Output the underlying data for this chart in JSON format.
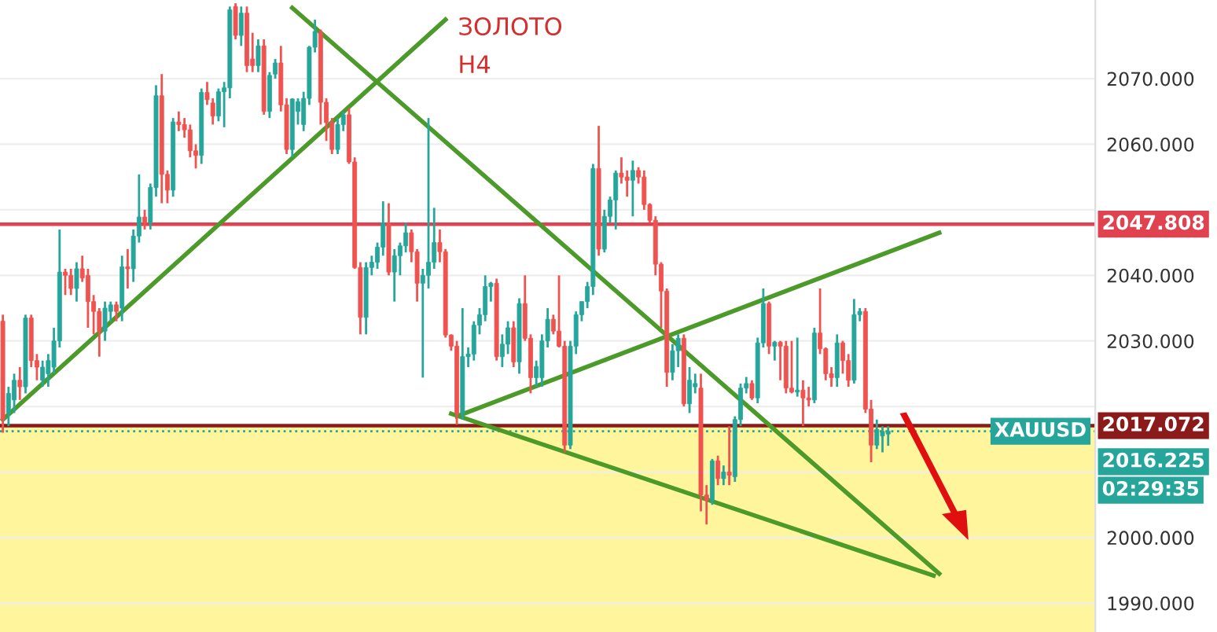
{
  "chart_data": {
    "type": "candlestick",
    "categories": [
      null,
      null,
      null,
      null,
      null,
      null,
      null,
      null,
      null,
      null,
      null,
      null,
      null,
      null,
      null,
      null,
      null,
      null,
      null,
      null,
      null,
      null,
      null,
      null,
      null,
      null,
      null,
      null,
      null,
      null,
      null,
      null,
      null,
      null,
      null,
      null,
      null,
      null,
      null,
      null,
      null,
      null,
      null,
      null,
      null,
      null,
      null,
      null,
      null,
      null,
      null,
      null,
      null,
      null,
      null,
      null,
      null,
      null,
      null,
      null,
      null,
      null,
      null,
      null,
      null,
      null,
      null,
      null,
      null,
      null,
      null,
      null,
      null,
      null,
      null,
      null,
      null,
      null,
      null,
      null,
      null,
      null,
      null,
      null,
      null,
      null,
      null,
      null,
      null,
      null,
      null,
      null,
      null,
      null,
      null,
      null,
      null,
      null,
      null,
      null,
      null,
      null,
      null,
      null,
      null,
      null,
      null,
      null,
      null,
      null,
      null,
      null,
      null,
      null,
      null,
      null,
      null,
      null,
      null,
      null,
      null,
      null,
      null,
      null,
      null,
      null,
      null,
      null,
      null,
      null,
      null,
      null,
      null,
      null,
      null,
      null,
      null,
      null,
      null,
      null,
      null,
      null,
      null,
      null,
      null,
      null,
      null,
      null,
      null,
      null,
      null,
      null,
      null,
      null,
      null,
      null,
      null,
      null,
      null,
      null,
      null,
      null,
      null,
      null,
      null,
      null,
      null,
      null,
      null,
      null,
      null,
      null,
      null,
      null,
      null,
      null,
      null,
      null,
      null,
      null,
      null,
      null,
      null,
      null,
      null,
      null,
      null,
      null,
      null,
      null,
      null,
      null,
      null
    ],
    "ohlc": [
      [
        2033,
        2034,
        2016,
        2018
      ],
      [
        2019,
        2023,
        2017,
        2022
      ],
      [
        2021,
        2025,
        2019,
        2024
      ],
      [
        2024,
        2026,
        2021,
        2023
      ],
      [
        2023,
        2034,
        2022,
        2033.5
      ],
      [
        2033.5,
        2034,
        2026,
        2027
      ],
      [
        2027,
        2028,
        2024,
        2026
      ],
      [
        2024,
        2027,
        2023,
        2026
      ],
      [
        2025,
        2028,
        2023,
        2027
      ],
      [
        2026,
        2032,
        2025,
        2030
      ],
      [
        2030,
        2047,
        2029,
        2040.5
      ],
      [
        2040.5,
        2041,
        2037,
        2040
      ],
      [
        2040,
        2041,
        2037,
        2038
      ],
      [
        2038,
        2042,
        2036,
        2041
      ],
      [
        2041,
        2043,
        2039,
        2039.6
      ],
      [
        2040,
        2041,
        2032,
        2036
      ],
      [
        2036,
        2037,
        2031,
        2034.5
      ],
      [
        2034.5,
        2035,
        2027.6,
        2031.5
      ],
      [
        2031.5,
        2036,
        2030,
        2035
      ],
      [
        2034.5,
        2036,
        2033,
        2035.5
      ],
      [
        2035.5,
        2036,
        2033,
        2034.5
      ],
      [
        2035,
        2043,
        2033,
        2041.3
      ],
      [
        2041.3,
        2044,
        2038,
        2041
      ],
      [
        2041,
        2047,
        2039,
        2046
      ],
      [
        2046,
        2055.4,
        2045,
        2048.9
      ],
      [
        2048.9,
        2050,
        2047,
        2048
      ],
      [
        2048,
        2054,
        2047,
        2053.4
      ],
      [
        2053.4,
        2069,
        2052,
        2067.4
      ],
      [
        2067.4,
        2070.7,
        2051,
        2055.4
      ],
      [
        2055.4,
        2056,
        2051,
        2053
      ],
      [
        2053,
        2064,
        2052,
        2063.4
      ],
      [
        2063.4,
        2065,
        2062,
        2063
      ],
      [
        2063,
        2064,
        2061,
        2062.2
      ],
      [
        2062.2,
        2063,
        2058,
        2059
      ],
      [
        2059,
        2060,
        2056.3,
        2058.3
      ],
      [
        2058.3,
        2068.5,
        2057,
        2067.9
      ],
      [
        2067.9,
        2069.5,
        2066,
        2066.8
      ],
      [
        2066.3,
        2067,
        2063,
        2064.3
      ],
      [
        2064.3,
        2068.5,
        2063.5,
        2068
      ],
      [
        2068,
        2069.5,
        2062.6,
        2068.6
      ],
      [
        2068.6,
        2081,
        2067,
        2080.5
      ],
      [
        2081,
        2081.5,
        2076,
        2076.6
      ],
      [
        2076.6,
        2081,
        2075,
        2080
      ],
      [
        2080,
        2081,
        2071,
        2072
      ],
      [
        2073,
        2077,
        2071,
        2072
      ],
      [
        2072,
        2076,
        2071,
        2075
      ],
      [
        2075,
        2076,
        2064.5,
        2065
      ],
      [
        2065,
        2071,
        2064,
        2070.5
      ],
      [
        2070.7,
        2073,
        2070,
        2072.4
      ],
      [
        2072.4,
        2075,
        2065,
        2066
      ],
      [
        2066,
        2067,
        2058.5,
        2059.2
      ],
      [
        2059.2,
        2067,
        2058,
        2066.9
      ],
      [
        2065,
        2067,
        2063,
        2066.5
      ],
      [
        2063,
        2068,
        2062,
        2067
      ],
      [
        2067,
        2075,
        2066,
        2074.8
      ],
      [
        2074.8,
        2079,
        2074,
        2077.2
      ],
      [
        2077,
        2077.5,
        2063,
        2066.4
      ],
      [
        2066.4,
        2067,
        2060.5,
        2063.3
      ],
      [
        2063.3,
        2064,
        2058.5,
        2059.2
      ],
      [
        2059.2,
        2064,
        2058.5,
        2063
      ],
      [
        2063,
        2065,
        2062,
        2064.5
      ],
      [
        2064.5,
        2065.5,
        2057,
        2057.3
      ],
      [
        2057.3,
        2058,
        2041,
        2041.2
      ],
      [
        2041.2,
        2042,
        2031,
        2033.6
      ],
      [
        2033.6,
        2042,
        2031,
        2041.2
      ],
      [
        2041.2,
        2043,
        2040,
        2042
      ],
      [
        2042,
        2045,
        2041,
        2044.3
      ],
      [
        2044.3,
        2051.3,
        2043,
        2048
      ],
      [
        2048,
        2051,
        2040,
        2040.5
      ],
      [
        2040.5,
        2044,
        2036,
        2043
      ],
      [
        2043,
        2045,
        2040,
        2044.5
      ],
      [
        2044.5,
        2048,
        2043.5,
        2046.5
      ],
      [
        2046.5,
        2047,
        2042,
        2043.6
      ],
      [
        2043.6,
        2044,
        2036,
        2038.8
      ],
      [
        2038.8,
        2041,
        2024.4,
        2040
      ],
      [
        2040,
        2064,
        2038,
        2042
      ],
      [
        2042,
        2050.3,
        2041,
        2045
      ],
      [
        2045,
        2047,
        2042,
        2043.6
      ],
      [
        2043.6,
        2044,
        2030.5,
        2030.9
      ],
      [
        2030.9,
        2031,
        2028.5,
        2029.2
      ],
      [
        2029.2,
        2030,
        2017.2,
        2018.9
      ],
      [
        2018.9,
        2035,
        2018,
        2027.6
      ],
      [
        2027.6,
        2029,
        2026,
        2028
      ],
      [
        2028,
        2033,
        2027,
        2032.4
      ],
      [
        2032.4,
        2035,
        2031,
        2034
      ],
      [
        2034,
        2040,
        2033,
        2038.3
      ],
      [
        2038.3,
        2039,
        2036,
        2038.8
      ],
      [
        2038.8,
        2039.5,
        2027,
        2027.6
      ],
      [
        2027.6,
        2031,
        2026,
        2029.5
      ],
      [
        2029.5,
        2033,
        2028,
        2032
      ],
      [
        2032,
        2033,
        2026,
        2026.8
      ],
      [
        2026.8,
        2036.5,
        2025,
        2035.7
      ],
      [
        2035.7,
        2040,
        2030,
        2030.4
      ],
      [
        2030.4,
        2031,
        2022,
        2024.4
      ],
      [
        2024.4,
        2027,
        2023,
        2026.1
      ],
      [
        2024.4,
        2031,
        2023,
        2030
      ],
      [
        2030,
        2035,
        2029,
        2033.3
      ],
      [
        2033.3,
        2034,
        2031,
        2031.5
      ],
      [
        2031.5,
        2040,
        2029,
        2029.2
      ],
      [
        2029.2,
        2030,
        2013,
        2014.1
      ],
      [
        2014.1,
        2030,
        2013.5,
        2029.2
      ],
      [
        2029.2,
        2034.5,
        2028,
        2034
      ],
      [
        2034,
        2036,
        2033,
        2036
      ],
      [
        2036,
        2039,
        2035,
        2038.3
      ],
      [
        2038.3,
        2057,
        2037,
        2056.3
      ],
      [
        2056.3,
        2062.8,
        2043,
        2044
      ],
      [
        2044,
        2050,
        2043.5,
        2049
      ],
      [
        2049,
        2052,
        2048,
        2051.5
      ],
      [
        2051.5,
        2056,
        2047,
        2055.6
      ],
      [
        2055.6,
        2058,
        2054,
        2055
      ],
      [
        2055,
        2056,
        2052,
        2054.5
      ],
      [
        2054.5,
        2057.5,
        2049,
        2056
      ],
      [
        2056,
        2056.5,
        2054,
        2055
      ],
      [
        2055,
        2056,
        2050,
        2050.8
      ],
      [
        2050.8,
        2051,
        2048,
        2048.4
      ],
      [
        2048.4,
        2049,
        2040,
        2041.7
      ],
      [
        2041.7,
        2042,
        2032,
        2037.6
      ],
      [
        2037.6,
        2038,
        2023,
        2025.2
      ],
      [
        2025.2,
        2029.5,
        2024,
        2028.5
      ],
      [
        2028.5,
        2031,
        2026,
        2030.4
      ],
      [
        2030.4,
        2031,
        2020,
        2020.4
      ],
      [
        2020.4,
        2026,
        2019,
        2024
      ],
      [
        2023,
        2025,
        2022,
        2023.5
      ],
      [
        2022.8,
        2025,
        2004,
        2006.5
      ],
      [
        2006.5,
        2008,
        2002,
        2005.7
      ],
      [
        2005.7,
        2012,
        2005,
        2011.7
      ],
      [
        2011.7,
        2012.5,
        2008,
        2009
      ],
      [
        2009,
        2011,
        2008,
        2010
      ],
      [
        2010,
        2017,
        2008,
        2009.5
      ],
      [
        2009.3,
        2018.5,
        2008.5,
        2018
      ],
      [
        2018,
        2023.5,
        2017,
        2022.8
      ],
      [
        2022.8,
        2024.5,
        2022,
        2023.5
      ],
      [
        2023.5,
        2024,
        2021,
        2021.3
      ],
      [
        2021.3,
        2030.5,
        2020.5,
        2029.7
      ],
      [
        2029.7,
        2038,
        2029,
        2035.7
      ],
      [
        2035.7,
        2036,
        2028,
        2029.2
      ],
      [
        2029.2,
        2030,
        2027,
        2029.8
      ],
      [
        2029.8,
        2030,
        2024,
        2029.2
      ],
      [
        2029.2,
        2030,
        2022,
        2022.8
      ],
      [
        2022.8,
        2030,
        2022,
        2022.2
      ],
      [
        2022.2,
        2030.5,
        2021.5,
        2022.5
      ],
      [
        2022.5,
        2024,
        2017,
        2021.3
      ],
      [
        2021.3,
        2023,
        2020,
        2021
      ],
      [
        2021,
        2032,
        2020.5,
        2031.2
      ],
      [
        2031.2,
        2038,
        2028,
        2028.8
      ],
      [
        2028.8,
        2029,
        2024,
        2025
      ],
      [
        2025,
        2026,
        2023,
        2024.4
      ],
      [
        2024.4,
        2031,
        2023,
        2029.7
      ],
      [
        2029.7,
        2030,
        2025,
        2027
      ],
      [
        2027,
        2028,
        2023,
        2024
      ],
      [
        2024,
        2036.4,
        2023.5,
        2034
      ],
      [
        2034,
        2035,
        2033,
        2034.5
      ],
      [
        2034.5,
        2035,
        2019,
        2019.6
      ],
      [
        2019.6,
        2021,
        2011.5,
        2014.1
      ],
      [
        2014.1,
        2018,
        2013.5,
        2016.5
      ],
      [
        2015.5,
        2017,
        2013,
        2016.2
      ],
      [
        2015.8,
        2017,
        2014,
        2016.225
      ],
      null,
      null,
      null,
      null,
      null,
      null,
      null,
      null,
      null,
      null,
      null,
      null,
      null,
      null,
      null,
      null,
      null,
      null,
      null,
      null,
      null,
      null,
      null,
      null,
      null,
      null,
      null,
      null,
      null,
      null,
      null,
      null,
      null,
      null,
      null,
      null
    ],
    "colors": [
      "#ef5350",
      "#26a69a",
      "#26a69a",
      "#ef5350",
      "#26a69a",
      "#ef5350",
      "#ef5350",
      "#26a69a",
      "#26a69a",
      "#26a69a",
      "#26a69a",
      "#ef5350",
      "#ef5350",
      "#26a69a",
      "#ef5350",
      "#ef5350",
      "#ef5350",
      "#ef5350",
      "#26a69a",
      "#26a69a",
      "#ef5350",
      "#26a69a",
      "#ef5350",
      "#26a69a",
      "#26a69a",
      "#ef5350",
      "#26a69a",
      "#26a69a",
      "#ef5350",
      "#ef5350",
      "#26a69a",
      "#ef5350",
      "#ef5350",
      "#ef5350",
      "#ef5350",
      "#26a69a",
      "#ef5350",
      "#ef5350",
      "#26a69a",
      "#26a69a",
      "#26a69a",
      "#ef5350",
      "#26a69a",
      "#ef5350",
      "#ef5350",
      "#26a69a",
      "#ef5350",
      "#26a69a",
      "#26a69a",
      "#ef5350",
      "#ef5350",
      "#26a69a",
      "#26a69a",
      "#26a69a",
      "#26a69a",
      "#26a69a",
      "#ef5350",
      "#ef5350",
      "#ef5350",
      "#26a69a",
      "#26a69a",
      "#ef5350",
      "#ef5350",
      "#ef5350",
      "#26a69a",
      "#26a69a",
      "#26a69a",
      "#26a69a",
      "#ef5350",
      "#26a69a",
      "#26a69a",
      "#26a69a",
      "#ef5350",
      "#ef5350",
      "#26a69a",
      "#26a69a",
      "#26a69a",
      "#ef5350",
      "#ef5350",
      "#ef5350",
      "#ef5350",
      "#26a69a",
      "#26a69a",
      "#26a69a",
      "#26a69a",
      "#26a69a",
      "#26a69a",
      "#ef5350",
      "#26a69a",
      "#26a69a",
      "#ef5350",
      "#26a69a",
      "#ef5350",
      "#ef5350",
      "#26a69a",
      "#26a69a",
      "#26a69a",
      "#ef5350",
      "#ef5350",
      "#ef5350",
      "#26a69a",
      "#26a69a",
      "#26a69a",
      "#26a69a",
      "#26a69a",
      "#ef5350",
      "#26a69a",
      "#26a69a",
      "#26a69a",
      "#ef5350",
      "#ef5350",
      "#26a69a",
      "#ef5350",
      "#ef5350",
      "#ef5350",
      "#ef5350",
      "#ef5350",
      "#ef5350",
      "#26a69a",
      "#26a69a",
      "#ef5350",
      "#26a69a",
      "#26a69a",
      "#ef5350",
      "#ef5350",
      "#26a69a",
      "#ef5350",
      "#26a69a",
      "#ef5350",
      "#26a69a",
      "#26a69a",
      "#26a69a",
      "#ef5350",
      "#26a69a",
      "#26a69a",
      "#ef5350",
      "#26a69a",
      "#ef5350",
      "#ef5350",
      "#ef5350",
      "#26a69a",
      "#ef5350",
      "#ef5350",
      "#26a69a",
      "#ef5350",
      "#ef5350",
      "#ef5350",
      "#26a69a",
      "#ef5350",
      "#ef5350",
      "#26a69a",
      "#26a69a",
      "#ef5350",
      "#ef5350",
      "#26a69a",
      "#26a69a",
      "#26a69a",
      null,
      null,
      null,
      null,
      null,
      null,
      null,
      null,
      null,
      null,
      null,
      null,
      null,
      null,
      null,
      null,
      null,
      null,
      null,
      null,
      null,
      null,
      null,
      null,
      null,
      null,
      null,
      null,
      null,
      null,
      null,
      null,
      null,
      null,
      null,
      null
    ],
    "series": [
      {
        "type": "line",
        "color": "#4c9a2a",
        "values": [
          2018,
          null,
          null,
          null,
          null,
          null,
          null,
          null,
          null,
          null,
          null,
          null,
          null,
          null,
          null,
          null,
          null,
          null,
          null,
          null,
          null,
          null,
          null,
          null,
          null,
          null,
          null,
          null,
          null,
          null,
          null,
          null,
          null,
          null,
          null,
          null,
          null,
          null,
          null,
          null,
          null,
          null,
          null,
          null,
          null,
          null,
          null,
          null,
          null,
          null,
          null,
          null,
          null,
          null,
          null,
          null,
          null,
          null,
          null,
          null,
          null,
          null,
          null,
          null,
          null,
          null,
          null,
          null,
          null,
          null,
          null,
          null,
          null,
          null,
          null,
          null,
          null,
          null,
          2079,
          null,
          null,
          null,
          null,
          null,
          null,
          null,
          null,
          null,
          null,
          null,
          null,
          null,
          null,
          null,
          null,
          null,
          null,
          null,
          null,
          null,
          null,
          null,
          null,
          null,
          null,
          null,
          null,
          null,
          null,
          null,
          null,
          null,
          null,
          null,
          null,
          null,
          null,
          null,
          null,
          null,
          null,
          null,
          null,
          null,
          null,
          null,
          null,
          null,
          null,
          null,
          null,
          null,
          null,
          null,
          null,
          null,
          null,
          null,
          null,
          null,
          null,
          null,
          null,
          null,
          null,
          null,
          null,
          null,
          null,
          null,
          null,
          null,
          null,
          null,
          null,
          null,
          null,
          null,
          null,
          null,
          null,
          null,
          null,
          null,
          null,
          null,
          null,
          null,
          null,
          null,
          null,
          null,
          null,
          null,
          null,
          null,
          null,
          null,
          null,
          null,
          null,
          null,
          null,
          null,
          null,
          null,
          null,
          null,
          null,
          null,
          null,
          null,
          null
        ]
      },
      {
        "type": "line",
        "color": "#4c9a2a",
        "values": [
          null,
          null,
          null,
          null,
          null,
          null,
          null,
          null,
          null,
          null,
          null,
          null,
          null,
          null,
          null,
          null,
          null,
          null,
          null,
          null,
          null,
          null,
          null,
          null,
          null,
          null,
          null,
          null,
          null,
          null,
          null,
          null,
          null,
          null,
          null,
          null,
          null,
          null,
          null,
          null,
          null,
          null,
          null,
          null,
          null,
          null,
          null,
          null,
          null,
          null,
          null,
          2080.8,
          null,
          null,
          null,
          null,
          null,
          null,
          null,
          null,
          null,
          null,
          null,
          null,
          null,
          null,
          null,
          null,
          null,
          null,
          null,
          null,
          null,
          null,
          null,
          null,
          null,
          null,
          null,
          null,
          null,
          null,
          null,
          null,
          null,
          null,
          null,
          null,
          null,
          null,
          null,
          null,
          null,
          null,
          null,
          null,
          null,
          null,
          null,
          null,
          null,
          null,
          null,
          null,
          null,
          null,
          null,
          null,
          null,
          null,
          null,
          null,
          null,
          null,
          null,
          null,
          null,
          null,
          null,
          null,
          null,
          null,
          null,
          null,
          null,
          null,
          null,
          null,
          null,
          null,
          null,
          null,
          null,
          null,
          null,
          null,
          null,
          null,
          null,
          null,
          null,
          null,
          null,
          null,
          null,
          null,
          null,
          null,
          null,
          null,
          null,
          null,
          null,
          null,
          null,
          null,
          null,
          null,
          null,
          null,
          null,
          null,
          null,
          null,
          null,
          1994.5,
          null,
          null,
          null,
          null,
          null,
          null,
          null,
          null,
          null,
          null,
          null,
          null,
          null,
          null,
          null,
          null,
          null,
          null,
          null,
          null,
          null,
          null,
          null,
          null,
          null,
          null,
          null
        ]
      },
      {
        "type": "line",
        "color": "#4c9a2a",
        "values": [
          null,
          null,
          null,
          null,
          null,
          null,
          null,
          null,
          null,
          null,
          null,
          null,
          null,
          null,
          null,
          null,
          null,
          null,
          null,
          null,
          null,
          null,
          null,
          null,
          null,
          null,
          null,
          null,
          null,
          null,
          null,
          null,
          null,
          null,
          null,
          null,
          null,
          null,
          null,
          null,
          null,
          null,
          null,
          null,
          null,
          null,
          null,
          null,
          null,
          null,
          null,
          null,
          null,
          null,
          null,
          null,
          null,
          null,
          null,
          null,
          null,
          null,
          null,
          null,
          null,
          null,
          null,
          null,
          null,
          null,
          null,
          null,
          null,
          null,
          null,
          null,
          null,
          null,
          null,
          2018.9,
          null,
          null,
          null,
          null,
          null,
          null,
          null,
          null,
          null,
          null,
          null,
          null,
          null,
          null,
          null,
          null,
          null,
          null,
          null,
          null,
          null,
          null,
          null,
          null,
          null,
          null,
          null,
          null,
          null,
          null,
          null,
          null,
          null,
          null,
          null,
          null,
          null,
          null,
          null,
          null,
          null,
          null,
          null,
          null,
          null,
          null,
          null,
          null,
          null,
          null,
          null,
          null,
          null,
          null,
          null,
          null,
          null,
          null,
          null,
          null,
          null,
          null,
          null,
          null,
          null,
          null,
          null,
          null,
          null,
          null,
          null,
          null,
          null,
          null,
          null,
          null,
          null,
          null,
          null,
          null,
          null,
          null,
          null,
          null,
          1994.2,
          null,
          null,
          null,
          null,
          null,
          null,
          null,
          null,
          null,
          null,
          null,
          null,
          null,
          null,
          null,
          null,
          null,
          null,
          null,
          null,
          null,
          null,
          null,
          null,
          null,
          null,
          null,
          null
        ]
      },
      {
        "type": "line",
        "color": "#4c9a2a",
        "values": [
          null,
          null,
          null,
          null,
          null,
          null,
          null,
          null,
          null,
          null,
          null,
          null,
          null,
          null,
          null,
          null,
          null,
          null,
          null,
          null,
          null,
          null,
          null,
          null,
          null,
          null,
          null,
          null,
          null,
          null,
          null,
          null,
          null,
          null,
          null,
          null,
          null,
          null,
          null,
          null,
          null,
          null,
          null,
          null,
          null,
          null,
          null,
          null,
          null,
          null,
          null,
          null,
          null,
          null,
          null,
          null,
          null,
          null,
          null,
          null,
          null,
          null,
          null,
          null,
          null,
          null,
          null,
          null,
          null,
          null,
          null,
          null,
          null,
          null,
          null,
          null,
          null,
          null,
          null,
          null,
          2018.5,
          null,
          null,
          null,
          null,
          null,
          null,
          null,
          null,
          null,
          null,
          null,
          null,
          null,
          null,
          null,
          null,
          null,
          null,
          null,
          null,
          null,
          null,
          null,
          null,
          null,
          null,
          null,
          null,
          null,
          null,
          null,
          null,
          null,
          null,
          null,
          null,
          null,
          null,
          null,
          null,
          null,
          null,
          null,
          null,
          null,
          null,
          null,
          null,
          null,
          null,
          null,
          null,
          null,
          null,
          null,
          null,
          null,
          null,
          null,
          null,
          null,
          null,
          null,
          null,
          null,
          null,
          null,
          null,
          null,
          null,
          null,
          null,
          null,
          null,
          null,
          null,
          null,
          null,
          null,
          null,
          null,
          null,
          null,
          null,
          2046.5,
          null,
          null,
          null,
          null,
          null,
          null,
          null,
          null,
          null,
          null,
          null,
          null,
          null,
          null,
          null,
          null,
          null,
          null,
          null,
          null,
          null,
          null,
          null,
          null,
          null,
          null,
          null
        ]
      }
    ],
    "ylim": [
      1985.6,
      2082
    ],
    "yticks": [
      {
        "value": 1990,
        "label": "1990.000"
      },
      {
        "value": 2000,
        "label": "2000.000"
      },
      {
        "value": 2010,
        "label": null
      },
      {
        "value": 2020,
        "label": null
      },
      {
        "value": 2030,
        "label": "2030.000"
      },
      {
        "value": 2040,
        "label": "2040.000"
      },
      {
        "value": 2050,
        "label": null
      },
      {
        "value": 2060,
        "label": "2060.000"
      },
      {
        "value": 2070,
        "label": "2070.000"
      }
    ],
    "ref_lines": [
      {
        "axis": "y",
        "value": 2047.808,
        "label": "2047.808",
        "color": "#e0434f",
        "line_style": "solid"
      },
      {
        "axis": "y",
        "value": 2017.072,
        "label": "2017.072",
        "color": "#8b1a1a",
        "line_style": "solid"
      },
      {
        "axis": "y",
        "value": 2016.225,
        "label": "2016.225",
        "color": "#26a69a",
        "line_style": "dotted"
      }
    ],
    "bands": [
      {
        "axis": "y",
        "from": 1985.6,
        "to": 2017.072,
        "color": "#fff59d"
      }
    ],
    "annotations": [
      "ЗОЛОТО",
      "H4",
      {
        "text": "XAUUSD",
        "y": 2016.225
      },
      "02:29:35"
    ],
    "grid": true
  }
}
